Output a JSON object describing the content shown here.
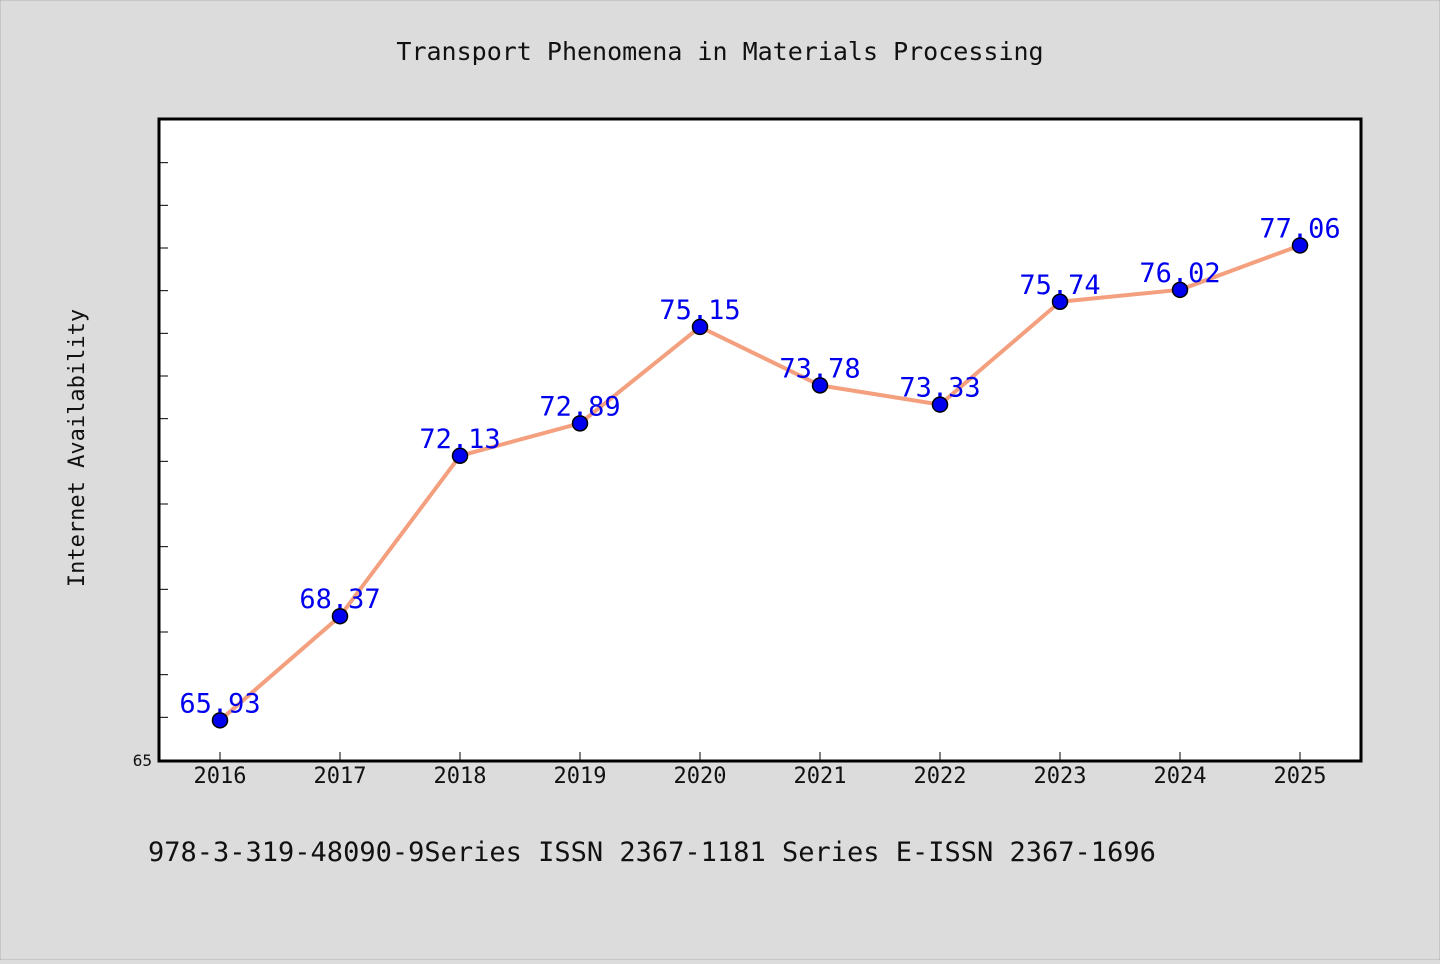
{
  "chart_data": {
    "type": "line",
    "title": "Transport Phenomena in Materials Processing",
    "xlabel": "",
    "ylabel": "Internet Availability",
    "categories": [
      "2016",
      "2017",
      "2018",
      "2019",
      "2020",
      "2021",
      "2022",
      "2023",
      "2024",
      "2025"
    ],
    "series": [
      {
        "values": [
          65.93,
          68.37,
          72.13,
          72.89,
          75.15,
          73.78,
          73.33,
          75.74,
          76.02,
          77.06
        ]
      }
    ],
    "ylim": [
      65,
      80
    ],
    "y_tick_labels": [
      "65"
    ],
    "grid": false,
    "data_labels": true,
    "colors": {
      "line": "#f4a07e",
      "marker": "#0000ee",
      "label": "#0000ee",
      "background": "#dcdcdc",
      "plot_bg": "#ffffff"
    }
  },
  "footer": {
    "text": "978-3-319-48090-9Series ISSN 2367-1181 Series E-ISSN 2367-1696"
  }
}
